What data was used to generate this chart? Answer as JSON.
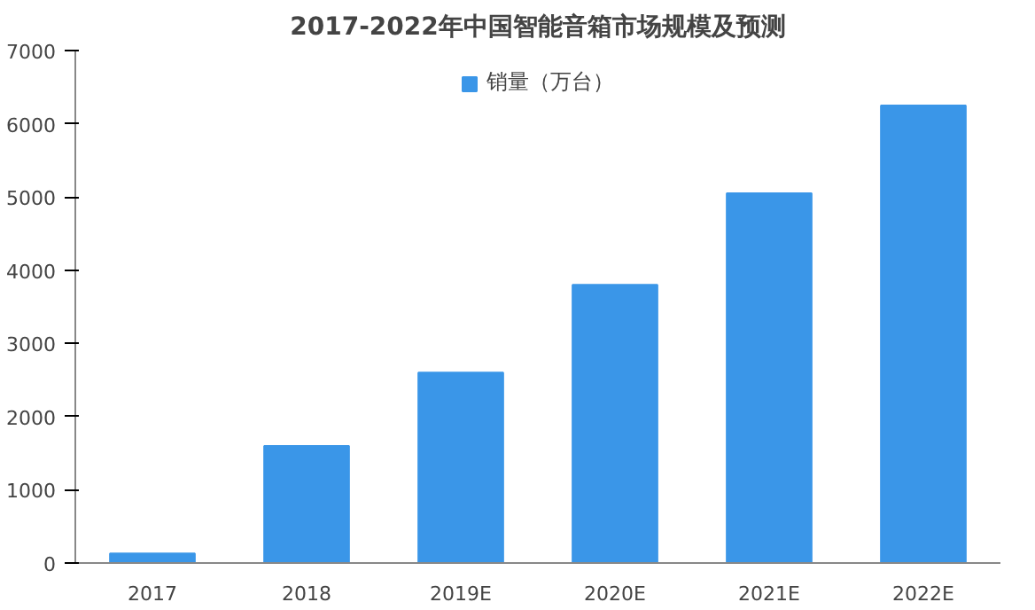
{
  "chart_data": {
    "type": "bar",
    "title": "2017-2022年中国智能音箱市场规模及预测",
    "categories": [
      "2017",
      "2018",
      "2019E",
      "2020E",
      "2021E",
      "2022E"
    ],
    "series": [
      {
        "name": "销量（万台）",
        "color": "#3a96e8",
        "values": [
          130,
          1600,
          2600,
          3800,
          5050,
          6250
        ]
      }
    ],
    "ylim": [
      0,
      7000
    ],
    "yticks": [
      0,
      1000,
      2000,
      3000,
      4000,
      5000,
      6000,
      7000
    ],
    "grid": false,
    "legend": "top"
  }
}
